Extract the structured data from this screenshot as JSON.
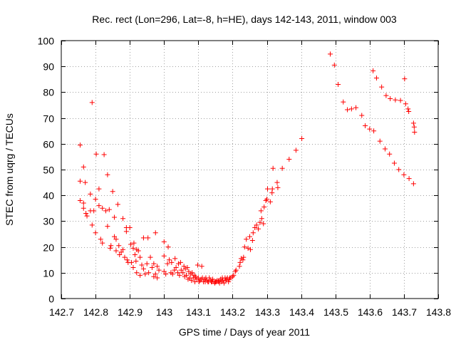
{
  "chart_data": {
    "type": "scatter",
    "title": "Rec. rect (Lon=296, Lat=-8, h=HE), days 142-143, 2011, window 003",
    "xlabel": "GPS time / Days of year 2011",
    "ylabel": "STEC from uqrg / TECUs",
    "xlim": [
      142.7,
      143.8
    ],
    "ylim": [
      0,
      100
    ],
    "xticks": [
      142.7,
      142.8,
      142.9,
      143.0,
      143.1,
      143.2,
      143.3,
      143.4,
      143.5,
      143.6,
      143.7,
      143.8
    ],
    "xtick_labels": [
      "142.7",
      "142.8",
      "142.9",
      "143",
      "143.1",
      "143.2",
      "143.3",
      "143.4",
      "143.5",
      "143.6",
      "143.7",
      "143.8"
    ],
    "yticks": [
      0,
      10,
      20,
      30,
      40,
      50,
      60,
      70,
      80,
      90,
      100
    ],
    "ytick_labels": [
      "0",
      "10",
      "20",
      "30",
      "40",
      "50",
      "60",
      "70",
      "80",
      "90",
      "100"
    ],
    "grid": true,
    "marker": "plus",
    "marker_color": "#ff0000",
    "points": [
      [
        142.755,
        59.5
      ],
      [
        142.755,
        45.5
      ],
      [
        142.755,
        38
      ],
      [
        142.765,
        51
      ],
      [
        142.765,
        37
      ],
      [
        142.765,
        35
      ],
      [
        142.77,
        45
      ],
      [
        142.772,
        33
      ],
      [
        142.775,
        32
      ],
      [
        142.785,
        40.5
      ],
      [
        142.785,
        34
      ],
      [
        142.79,
        28.5
      ],
      [
        142.79,
        76
      ],
      [
        142.795,
        34
      ],
      [
        142.8,
        38.5
      ],
      [
        142.8,
        25.5
      ],
      [
        142.802,
        56
      ],
      [
        142.81,
        42.5
      ],
      [
        142.81,
        36
      ],
      [
        142.815,
        23
      ],
      [
        142.82,
        35
      ],
      [
        142.82,
        21.5
      ],
      [
        142.825,
        55.8
      ],
      [
        142.83,
        34
      ],
      [
        142.835,
        28
      ],
      [
        142.835,
        48
      ],
      [
        142.84,
        34.5
      ],
      [
        142.843,
        19.5
      ],
      [
        142.845,
        20.5
      ],
      [
        142.85,
        41.5
      ],
      [
        142.855,
        31.5
      ],
      [
        142.855,
        24
      ],
      [
        142.86,
        23
      ],
      [
        142.86,
        18.5
      ],
      [
        142.865,
        36.5
      ],
      [
        142.868,
        20.5
      ],
      [
        142.87,
        17
      ],
      [
        142.875,
        18
      ],
      [
        142.88,
        31
      ],
      [
        142.88,
        19
      ],
      [
        142.885,
        16
      ],
      [
        142.89,
        27.5
      ],
      [
        142.89,
        26
      ],
      [
        142.892,
        15
      ],
      [
        142.895,
        14
      ],
      [
        142.9,
        27.5
      ],
      [
        142.903,
        21
      ],
      [
        142.905,
        14
      ],
      [
        142.91,
        19.5
      ],
      [
        142.91,
        12
      ],
      [
        142.912,
        21.5
      ],
      [
        142.915,
        17
      ],
      [
        142.918,
        14.5
      ],
      [
        142.92,
        19
      ],
      [
        142.92,
        10
      ],
      [
        142.925,
        18.5
      ],
      [
        142.93,
        16
      ],
      [
        142.93,
        9
      ],
      [
        142.935,
        13
      ],
      [
        142.94,
        23.5
      ],
      [
        142.94,
        11.5
      ],
      [
        142.945,
        9.5
      ],
      [
        142.95,
        13.5
      ],
      [
        142.953,
        23.5
      ],
      [
        142.955,
        10
      ],
      [
        142.96,
        16
      ],
      [
        142.965,
        12
      ],
      [
        142.97,
        8.5
      ],
      [
        142.97,
        13.5
      ],
      [
        142.975,
        25.5
      ],
      [
        142.975,
        9.5
      ],
      [
        142.98,
        12.5
      ],
      [
        142.98,
        8
      ],
      [
        142.985,
        11
      ],
      [
        143.0,
        22
      ],
      [
        143.0,
        16.5
      ],
      [
        143.0,
        10.5
      ],
      [
        143.005,
        9.5
      ],
      [
        143.01,
        13.5
      ],
      [
        143.012,
        20
      ],
      [
        143.015,
        15
      ],
      [
        143.02,
        10
      ],
      [
        143.022,
        14
      ],
      [
        143.025,
        9.5
      ],
      [
        143.03,
        11
      ],
      [
        143.032,
        15.5
      ],
      [
        143.035,
        12
      ],
      [
        143.04,
        10
      ],
      [
        143.042,
        13.5
      ],
      [
        143.045,
        9
      ],
      [
        143.048,
        14
      ],
      [
        143.05,
        11
      ],
      [
        143.055,
        10
      ],
      [
        143.058,
        12.5
      ],
      [
        143.06,
        8.5
      ],
      [
        143.062,
        11.5
      ],
      [
        143.065,
        9
      ],
      [
        143.068,
        12
      ],
      [
        143.07,
        7.5
      ],
      [
        143.072,
        10.5
      ],
      [
        143.075,
        8
      ],
      [
        143.078,
        9.5
      ],
      [
        143.08,
        7
      ],
      [
        143.082,
        10
      ],
      [
        143.085,
        8
      ],
      [
        143.088,
        9
      ],
      [
        143.09,
        6.5
      ],
      [
        143.092,
        8.5
      ],
      [
        143.095,
        7.5
      ],
      [
        143.098,
        13
      ],
      [
        143.1,
        8
      ],
      [
        143.102,
        6.5
      ],
      [
        143.105,
        7
      ],
      [
        143.108,
        7.5
      ],
      [
        143.11,
        12.5
      ],
      [
        143.112,
        8
      ],
      [
        143.115,
        6.5
      ],
      [
        143.118,
        7.5
      ],
      [
        143.12,
        6.5
      ],
      [
        143.122,
        8
      ],
      [
        143.125,
        7
      ],
      [
        143.128,
        6.5
      ],
      [
        143.13,
        6.5
      ],
      [
        143.132,
        8
      ],
      [
        143.135,
        7
      ],
      [
        143.138,
        6.5
      ],
      [
        143.14,
        6.5
      ],
      [
        143.142,
        7.5
      ],
      [
        143.145,
        6.5
      ],
      [
        143.148,
        6
      ],
      [
        143.15,
        6.5
      ],
      [
        143.152,
        6.5
      ],
      [
        143.155,
        7
      ],
      [
        143.158,
        6.5
      ],
      [
        143.16,
        7
      ],
      [
        143.162,
        6
      ],
      [
        143.165,
        7.5
      ],
      [
        143.168,
        6.5
      ],
      [
        143.17,
        8
      ],
      [
        143.172,
        7
      ],
      [
        143.175,
        6
      ],
      [
        143.178,
        8
      ],
      [
        143.18,
        7
      ],
      [
        143.182,
        7.5
      ],
      [
        143.185,
        8
      ],
      [
        143.188,
        6.5
      ],
      [
        143.19,
        7.5
      ],
      [
        143.192,
        8
      ],
      [
        143.195,
        8
      ],
      [
        143.2,
        8.5
      ],
      [
        143.203,
        9
      ],
      [
        143.208,
        10.5
      ],
      [
        143.21,
        11
      ],
      [
        143.22,
        12.5
      ],
      [
        143.222,
        14
      ],
      [
        143.225,
        15.5
      ],
      [
        143.23,
        15
      ],
      [
        143.232,
        16
      ],
      [
        143.235,
        20
      ],
      [
        143.24,
        23
      ],
      [
        143.245,
        19.5
      ],
      [
        143.25,
        24
      ],
      [
        143.252,
        19
      ],
      [
        143.258,
        22.5
      ],
      [
        143.26,
        25.5
      ],
      [
        143.265,
        27.5
      ],
      [
        143.27,
        28.5
      ],
      [
        143.275,
        27
      ],
      [
        143.28,
        29.5
      ],
      [
        143.283,
        34
      ],
      [
        143.285,
        31
      ],
      [
        143.29,
        29
      ],
      [
        143.292,
        35.5
      ],
      [
        143.297,
        38
      ],
      [
        143.3,
        38.5
      ],
      [
        143.302,
        42.5
      ],
      [
        143.31,
        37.5
      ],
      [
        143.315,
        41
      ],
      [
        143.316,
        42.5
      ],
      [
        143.318,
        50.5
      ],
      [
        143.33,
        45
      ],
      [
        143.332,
        43
      ],
      [
        143.345,
        50.5
      ],
      [
        143.365,
        54
      ],
      [
        143.385,
        57.5
      ],
      [
        143.402,
        62
      ],
      [
        143.485,
        94.8
      ],
      [
        143.497,
        90.5
      ],
      [
        143.508,
        83
      ],
      [
        143.523,
        76.2
      ],
      [
        143.535,
        73.2
      ],
      [
        143.547,
        73.5
      ],
      [
        143.56,
        74
      ],
      [
        143.577,
        71
      ],
      [
        143.587,
        67
      ],
      [
        143.6,
        65.7
      ],
      [
        143.61,
        88.3
      ],
      [
        143.612,
        65
      ],
      [
        143.62,
        85.5
      ],
      [
        143.63,
        61
      ],
      [
        143.635,
        82
      ],
      [
        143.645,
        58
      ],
      [
        143.648,
        78.7
      ],
      [
        143.658,
        56
      ],
      [
        143.66,
        77.5
      ],
      [
        143.672,
        52.5
      ],
      [
        143.675,
        77
      ],
      [
        143.685,
        50
      ],
      [
        143.69,
        76.8
      ],
      [
        143.7,
        48
      ],
      [
        143.702,
        85.2
      ],
      [
        143.705,
        75.5
      ],
      [
        143.712,
        73.5
      ],
      [
        143.714,
        72.5
      ],
      [
        143.715,
        46.5
      ],
      [
        143.728,
        44.5
      ],
      [
        143.728,
        68
      ],
      [
        143.73,
        66.5
      ],
      [
        143.731,
        64.5
      ]
    ]
  }
}
